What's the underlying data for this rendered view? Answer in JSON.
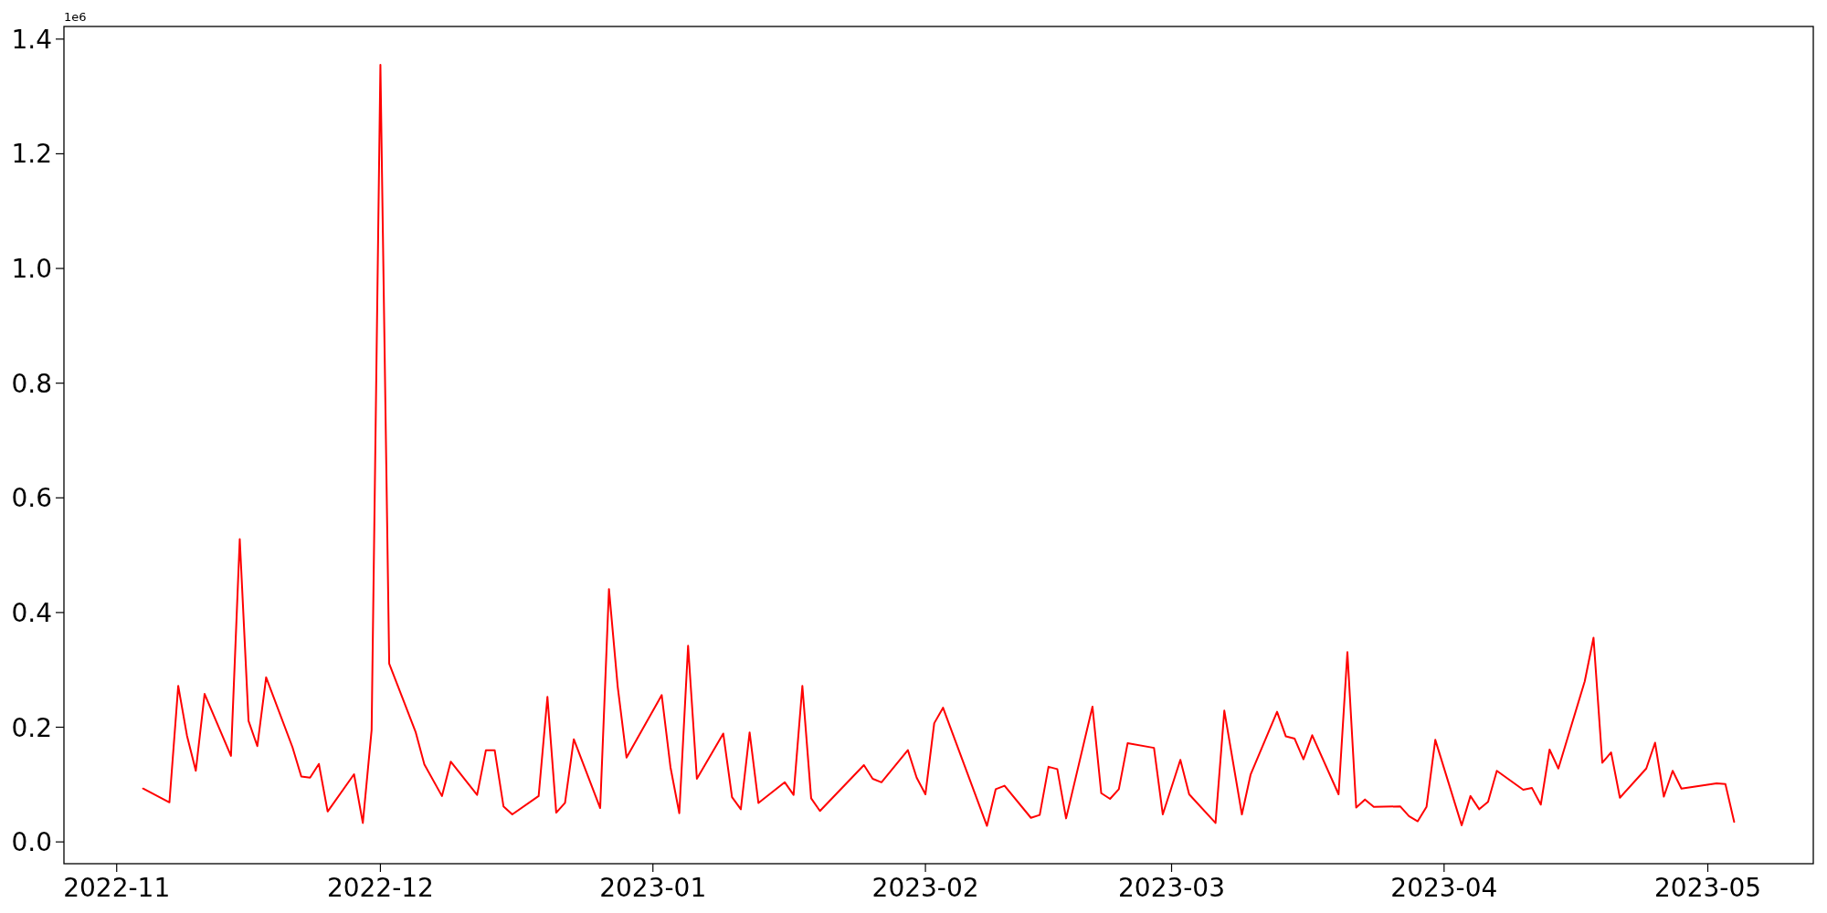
{
  "chart_data": {
    "type": "line",
    "x": [
      "2022-11-04",
      "2022-11-07",
      "2022-11-08",
      "2022-11-09",
      "2022-11-10",
      "2022-11-11",
      "2022-11-14",
      "2022-11-15",
      "2022-11-16",
      "2022-11-17",
      "2022-11-18",
      "2022-11-21",
      "2022-11-22",
      "2022-11-23",
      "2022-11-24",
      "2022-11-25",
      "2022-11-28",
      "2022-11-29",
      "2022-11-30",
      "2022-12-01",
      "2022-12-02",
      "2022-12-05",
      "2022-12-06",
      "2022-12-08",
      "2022-12-09",
      "2022-12-12",
      "2022-12-13",
      "2022-12-14",
      "2022-12-15",
      "2022-12-16",
      "2022-12-19",
      "2022-12-20",
      "2022-12-21",
      "2022-12-22",
      "2022-12-23",
      "2022-12-26",
      "2022-12-27",
      "2022-12-28",
      "2022-12-29",
      "2023-01-02",
      "2023-01-03",
      "2023-01-04",
      "2023-01-05",
      "2023-01-06",
      "2023-01-09",
      "2023-01-10",
      "2023-01-11",
      "2023-01-12",
      "2023-01-13",
      "2023-01-16",
      "2023-01-17",
      "2023-01-18",
      "2023-01-19",
      "2023-01-20",
      "2023-01-25",
      "2023-01-26",
      "2023-01-27",
      "2023-01-30",
      "2023-01-31",
      "2023-02-01",
      "2023-02-02",
      "2023-02-03",
      "2023-02-08",
      "2023-02-09",
      "2023-02-10",
      "2023-02-13",
      "2023-02-14",
      "2023-02-15",
      "2023-02-16",
      "2023-02-17",
      "2023-02-20",
      "2023-02-21",
      "2023-02-22",
      "2023-02-23",
      "2023-02-24",
      "2023-02-27",
      "2023-02-28",
      "2023-03-02",
      "2023-03-03",
      "2023-03-06",
      "2023-03-07",
      "2023-03-09",
      "2023-03-10",
      "2023-03-13",
      "2023-03-14",
      "2023-03-15",
      "2023-03-16",
      "2023-03-17",
      "2023-03-20",
      "2023-03-21",
      "2023-03-22",
      "2023-03-23",
      "2023-03-24",
      "2023-03-27",
      "2023-03-28",
      "2023-03-29",
      "2023-03-30",
      "2023-03-31",
      "2023-04-03",
      "2023-04-04",
      "2023-04-05",
      "2023-04-06",
      "2023-04-07",
      "2023-04-10",
      "2023-04-11",
      "2023-04-12",
      "2023-04-13",
      "2023-04-14",
      "2023-04-17",
      "2023-04-18",
      "2023-04-19",
      "2023-04-20",
      "2023-04-21",
      "2023-04-24",
      "2023-04-25",
      "2023-04-26",
      "2023-04-27",
      "2023-04-28",
      "2023-05-02",
      "2023-05-03",
      "2023-05-04"
    ],
    "series": [
      {
        "color": "#ff0000",
        "values": [
          0.093,
          0.069,
          0.272,
          0.185,
          0.124,
          0.258,
          0.15,
          0.528,
          0.211,
          0.167,
          0.287,
          0.165,
          0.114,
          0.112,
          0.136,
          0.053,
          0.118,
          0.033,
          0.195,
          1.355,
          0.311,
          0.192,
          0.135,
          0.08,
          0.14,
          0.082,
          0.16,
          0.16,
          0.062,
          0.048,
          0.08,
          0.253,
          0.051,
          0.068,
          0.179,
          0.059,
          0.441,
          0.27,
          0.147,
          0.256,
          0.13,
          0.05,
          0.342,
          0.11,
          0.189,
          0.078,
          0.057,
          0.191,
          0.068,
          0.104,
          0.082,
          0.272,
          0.076,
          0.054,
          0.134,
          0.11,
          0.104,
          0.16,
          0.112,
          0.083,
          0.207,
          0.234,
          0.028,
          0.092,
          0.098,
          0.042,
          0.047,
          0.131,
          0.127,
          0.041,
          0.236,
          0.085,
          0.075,
          0.092,
          0.172,
          0.164,
          0.048,
          0.143,
          0.083,
          0.033,
          0.229,
          0.048,
          0.118,
          0.227,
          0.184,
          0.18,
          0.144,
          0.186,
          0.083,
          0.331,
          0.06,
          0.074,
          0.061,
          0.062,
          0.045,
          0.036,
          0.061,
          0.178,
          0.029,
          0.08,
          0.057,
          0.07,
          0.124,
          0.091,
          0.094,
          0.065,
          0.161,
          0.128,
          0.28,
          0.356,
          0.138,
          0.156,
          0.077,
          0.128,
          0.173,
          0.079,
          0.124,
          0.093,
          0.102,
          0.101,
          0.035
        ]
      }
    ],
    "xlim": [
      "2022-10-26",
      "2023-05-13"
    ],
    "xticks": [
      {
        "value": "2022-11-01",
        "label": "2022-11"
      },
      {
        "value": "2022-12-01",
        "label": "2022-12"
      },
      {
        "value": "2023-01-01",
        "label": "2023-01"
      },
      {
        "value": "2023-02-01",
        "label": "2023-02"
      },
      {
        "value": "2023-03-01",
        "label": "2023-03"
      },
      {
        "value": "2023-04-01",
        "label": "2023-04"
      },
      {
        "value": "2023-05-01",
        "label": "2023-05"
      }
    ],
    "ylim": [
      -0.038,
      1.422
    ],
    "yticks": [
      {
        "value": 0,
        "label": "0.0"
      },
      0.2,
      0.4,
      0.6,
      0.8,
      {
        "value": 1,
        "label": "1.0"
      },
      1.2,
      1.4
    ],
    "annotations": [
      "1e6"
    ],
    "marker": "none",
    "line_style": "solid"
  }
}
